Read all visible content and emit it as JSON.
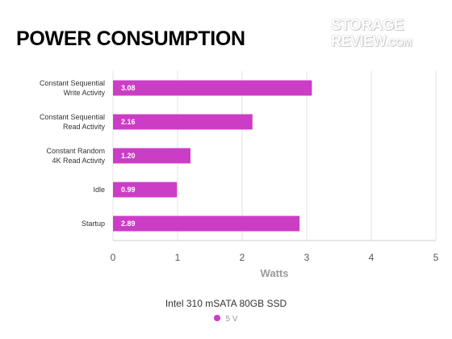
{
  "title": "POWER CONSUMPTION",
  "watermark": {
    "line1": "STORAGE",
    "line2": "REVIEW",
    "suffix": ".COM"
  },
  "legend_title": "Intel 310 mSATA 80GB SSD",
  "chart_data": {
    "type": "bar",
    "orientation": "horizontal",
    "categories": [
      [
        "Constant Sequential",
        "Write Activity"
      ],
      [
        "Constant Sequential",
        "Read Activity"
      ],
      [
        "Constant Random",
        "4K Read Activity"
      ],
      [
        "Idle"
      ],
      [
        "Startup"
      ]
    ],
    "series": [
      {
        "name": "5 V",
        "color": "#cc3dc6",
        "values": [
          3.08,
          2.16,
          1.2,
          0.99,
          2.89
        ]
      }
    ],
    "data_labels": [
      "3.08",
      "2.16",
      "1.20",
      "0.99",
      "2.89"
    ],
    "xlabel": "Watts",
    "xlim": [
      0,
      5
    ],
    "xticks": [
      0,
      1,
      2,
      3,
      4,
      5
    ],
    "grid": true,
    "legend_position": "bottom"
  }
}
